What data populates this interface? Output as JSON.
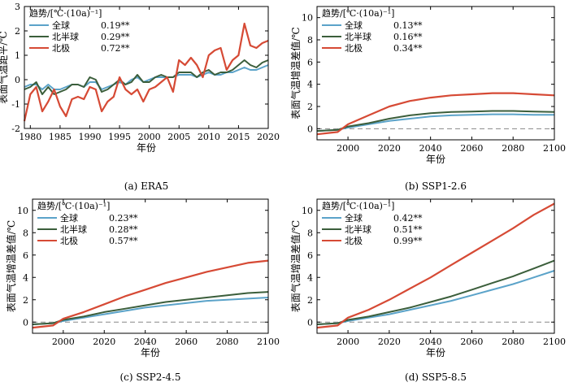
{
  "colors": {
    "global": "#5ba3c9",
    "nh": "#3b5e3b",
    "arctic": "#d64a35",
    "zero": "#888888"
  },
  "chart_data": [
    {
      "type": "line",
      "panel": "a",
      "caption": "(a) ERA5",
      "xlabel": "年份",
      "ylabel": "表面气温距平/℃",
      "xlim": [
        1979,
        2020
      ],
      "ylim": [
        -2,
        3
      ],
      "xticks": [
        1980,
        1985,
        1990,
        1995,
        2000,
        2005,
        2010,
        2015,
        2020
      ],
      "yticks": [
        -2,
        -1,
        0,
        1,
        2,
        3
      ],
      "zero_line": false,
      "legend": {
        "title": "趋势/[℃·(10a)⁻¹]",
        "position": "top-left",
        "entries": [
          {
            "label": "全球",
            "value": "0.19**"
          },
          {
            "label": "北半球",
            "value": "0.29**"
          },
          {
            "label": "北极",
            "value": "0.72**"
          }
        ]
      },
      "series": [
        {
          "name": "全球",
          "color": "#5ba3c9",
          "x": [
            1979,
            1980,
            1981,
            1982,
            1983,
            1984,
            1985,
            1986,
            1987,
            1988,
            1989,
            1990,
            1991,
            1992,
            1993,
            1994,
            1995,
            1996,
            1997,
            1998,
            1999,
            2000,
            2001,
            2002,
            2003,
            2004,
            2005,
            2006,
            2007,
            2008,
            2009,
            2010,
            2011,
            2012,
            2013,
            2014,
            2015,
            2016,
            2017,
            2018,
            2019,
            2020
          ],
          "y": [
            -0.3,
            -0.2,
            -0.2,
            -0.4,
            -0.2,
            -0.4,
            -0.4,
            -0.3,
            -0.2,
            -0.2,
            -0.3,
            -0.1,
            -0.1,
            -0.4,
            -0.3,
            -0.2,
            -0.1,
            -0.2,
            0.0,
            0.1,
            -0.1,
            0.0,
            0.1,
            0.1,
            0.1,
            0.1,
            0.2,
            0.2,
            0.2,
            0.1,
            0.2,
            0.3,
            0.2,
            0.2,
            0.3,
            0.3,
            0.4,
            0.5,
            0.4,
            0.4,
            0.5,
            0.6
          ]
        },
        {
          "name": "北半球",
          "color": "#3b5e3b",
          "x": [
            1979,
            1980,
            1981,
            1982,
            1983,
            1984,
            1985,
            1986,
            1987,
            1988,
            1989,
            1990,
            1991,
            1992,
            1993,
            1994,
            1995,
            1996,
            1997,
            1998,
            1999,
            2000,
            2001,
            2002,
            2003,
            2004,
            2005,
            2006,
            2007,
            2008,
            2009,
            2010,
            2011,
            2012,
            2013,
            2014,
            2015,
            2016,
            2017,
            2018,
            2019,
            2020
          ],
          "y": [
            -0.4,
            -0.3,
            -0.1,
            -0.6,
            -0.3,
            -0.6,
            -0.5,
            -0.4,
            -0.2,
            -0.2,
            -0.3,
            0.1,
            0.0,
            -0.5,
            -0.4,
            -0.2,
            0.0,
            -0.2,
            -0.1,
            0.2,
            -0.1,
            -0.1,
            0.1,
            0.2,
            0.1,
            0.1,
            0.3,
            0.3,
            0.3,
            0.1,
            0.3,
            0.4,
            0.2,
            0.3,
            0.3,
            0.4,
            0.6,
            0.8,
            0.6,
            0.5,
            0.7,
            0.8
          ]
        },
        {
          "name": "北极",
          "color": "#d64a35",
          "x": [
            1979,
            1980,
            1981,
            1982,
            1983,
            1984,
            1985,
            1986,
            1987,
            1988,
            1989,
            1990,
            1991,
            1992,
            1993,
            1994,
            1995,
            1996,
            1997,
            1998,
            1999,
            2000,
            2001,
            2002,
            2003,
            2004,
            2005,
            2006,
            2007,
            2008,
            2009,
            2010,
            2011,
            2012,
            2013,
            2014,
            2015,
            2016,
            2017,
            2018,
            2019,
            2020
          ],
          "y": [
            -1.7,
            -0.6,
            -0.3,
            -1.3,
            -0.9,
            -0.4,
            -1.1,
            -1.5,
            -0.8,
            -0.7,
            -0.8,
            -0.3,
            -0.4,
            -1.3,
            -0.9,
            -0.7,
            0.1,
            -0.4,
            -0.6,
            -0.4,
            -0.9,
            -0.4,
            -0.3,
            -0.1,
            0.1,
            -0.5,
            0.8,
            0.6,
            0.9,
            0.6,
            0.1,
            1.0,
            1.2,
            1.3,
            0.4,
            0.8,
            1.0,
            2.3,
            1.4,
            1.3,
            1.5,
            1.6
          ]
        }
      ]
    },
    {
      "type": "line",
      "panel": "b",
      "caption": "(b) SSP1-2.6",
      "xlabel": "年份",
      "ylabel": "表面气温增温差值/℃",
      "xlim": [
        1985,
        2100
      ],
      "ylim": [
        -1,
        11
      ],
      "xticks": [
        2000,
        2020,
        2040,
        2060,
        2080,
        2100
      ],
      "yticks": [
        0,
        2,
        4,
        6,
        8,
        10
      ],
      "zero_line": true,
      "legend": {
        "title": "趋势/[℃·(10a)⁻¹]",
        "position": "top-left",
        "entries": [
          {
            "label": "全球",
            "value": "0.13**"
          },
          {
            "label": "北半球",
            "value": "0.16**"
          },
          {
            "label": "北极",
            "value": "0.34**"
          }
        ]
      },
      "series": [
        {
          "name": "全球",
          "color": "#5ba3c9",
          "x": [
            1985,
            1995,
            2000,
            2010,
            2020,
            2030,
            2040,
            2050,
            2060,
            2070,
            2080,
            2090,
            2100
          ],
          "y": [
            -0.2,
            -0.1,
            0.1,
            0.4,
            0.7,
            0.9,
            1.1,
            1.2,
            1.25,
            1.3,
            1.3,
            1.25,
            1.25
          ]
        },
        {
          "name": "北半球",
          "color": "#3b5e3b",
          "x": [
            1985,
            1995,
            2000,
            2010,
            2020,
            2030,
            2040,
            2050,
            2060,
            2070,
            2080,
            2090,
            2100
          ],
          "y": [
            -0.2,
            -0.1,
            0.2,
            0.5,
            0.9,
            1.2,
            1.4,
            1.5,
            1.55,
            1.6,
            1.6,
            1.55,
            1.5
          ]
        },
        {
          "name": "北极",
          "color": "#d64a35",
          "x": [
            1985,
            1995,
            2000,
            2010,
            2020,
            2030,
            2040,
            2050,
            2060,
            2070,
            2080,
            2090,
            2100
          ],
          "y": [
            -0.5,
            -0.3,
            0.4,
            1.2,
            2.0,
            2.5,
            2.8,
            3.0,
            3.1,
            3.2,
            3.2,
            3.1,
            3.0
          ]
        }
      ]
    },
    {
      "type": "line",
      "panel": "c",
      "caption": "(c) SSP2-4.5",
      "xlabel": "年份",
      "ylabel": "表面气温增温差值/℃",
      "xlim": [
        1985,
        2100
      ],
      "ylim": [
        -1,
        11
      ],
      "xticks": [
        2000,
        2020,
        2040,
        2060,
        2080,
        2100
      ],
      "yticks": [
        0,
        2,
        4,
        6,
        8,
        10
      ],
      "zero_line": true,
      "legend": {
        "title": "趋势/[℃·(10a)⁻¹]",
        "position": "top-left",
        "entries": [
          {
            "label": "全球",
            "value": "0.23**"
          },
          {
            "label": "北半球",
            "value": "0.28**"
          },
          {
            "label": "北极",
            "value": "0.57**"
          }
        ]
      },
      "series": [
        {
          "name": "全球",
          "color": "#5ba3c9",
          "x": [
            1985,
            1995,
            2000,
            2010,
            2020,
            2030,
            2040,
            2050,
            2060,
            2070,
            2080,
            2090,
            2100
          ],
          "y": [
            -0.2,
            -0.1,
            0.1,
            0.4,
            0.7,
            1.0,
            1.3,
            1.5,
            1.7,
            1.9,
            2.0,
            2.1,
            2.2
          ]
        },
        {
          "name": "北半球",
          "color": "#3b5e3b",
          "x": [
            1985,
            1995,
            2000,
            2010,
            2020,
            2030,
            2040,
            2050,
            2060,
            2070,
            2080,
            2090,
            2100
          ],
          "y": [
            -0.2,
            -0.1,
            0.2,
            0.5,
            0.9,
            1.2,
            1.5,
            1.8,
            2.0,
            2.2,
            2.4,
            2.6,
            2.7
          ]
        },
        {
          "name": "北极",
          "color": "#d64a35",
          "x": [
            1985,
            1995,
            2000,
            2010,
            2020,
            2030,
            2040,
            2050,
            2060,
            2070,
            2080,
            2090,
            2100
          ],
          "y": [
            -0.5,
            -0.3,
            0.3,
            0.9,
            1.6,
            2.3,
            2.9,
            3.5,
            4.0,
            4.5,
            4.9,
            5.3,
            5.5
          ]
        }
      ]
    },
    {
      "type": "line",
      "panel": "d",
      "caption": "(d) SSP5-8.5",
      "xlabel": "年份",
      "ylabel": "表面气温增温差值/℃",
      "xlim": [
        1985,
        2100
      ],
      "ylim": [
        -1,
        11
      ],
      "xticks": [
        2000,
        2020,
        2040,
        2060,
        2080,
        2100
      ],
      "yticks": [
        0,
        2,
        4,
        6,
        8,
        10
      ],
      "zero_line": true,
      "legend": {
        "title": "趋势/[℃·(10a)⁻¹]",
        "position": "top-left",
        "entries": [
          {
            "label": "全球",
            "value": "0.42**"
          },
          {
            "label": "北半球",
            "value": "0.51**"
          },
          {
            "label": "北极",
            "value": "0.99**"
          }
        ]
      },
      "series": [
        {
          "name": "全球",
          "color": "#5ba3c9",
          "x": [
            1985,
            1995,
            2000,
            2010,
            2020,
            2030,
            2040,
            2050,
            2060,
            2070,
            2080,
            2090,
            2100
          ],
          "y": [
            -0.2,
            -0.1,
            0.1,
            0.4,
            0.7,
            1.1,
            1.5,
            1.9,
            2.4,
            2.9,
            3.4,
            4.0,
            4.6
          ]
        },
        {
          "name": "北半球",
          "color": "#3b5e3b",
          "x": [
            1985,
            1995,
            2000,
            2010,
            2020,
            2030,
            2040,
            2050,
            2060,
            2070,
            2080,
            2090,
            2100
          ],
          "y": [
            -0.2,
            -0.1,
            0.2,
            0.5,
            0.9,
            1.3,
            1.8,
            2.3,
            2.9,
            3.5,
            4.1,
            4.8,
            5.5
          ]
        },
        {
          "name": "北极",
          "color": "#d64a35",
          "x": [
            1985,
            1995,
            2000,
            2010,
            2020,
            2030,
            2040,
            2050,
            2060,
            2070,
            2080,
            2090,
            2100
          ],
          "y": [
            -0.5,
            -0.3,
            0.4,
            1.1,
            2.0,
            3.0,
            4.0,
            5.1,
            6.2,
            7.3,
            8.4,
            9.6,
            10.6
          ]
        }
      ]
    }
  ]
}
